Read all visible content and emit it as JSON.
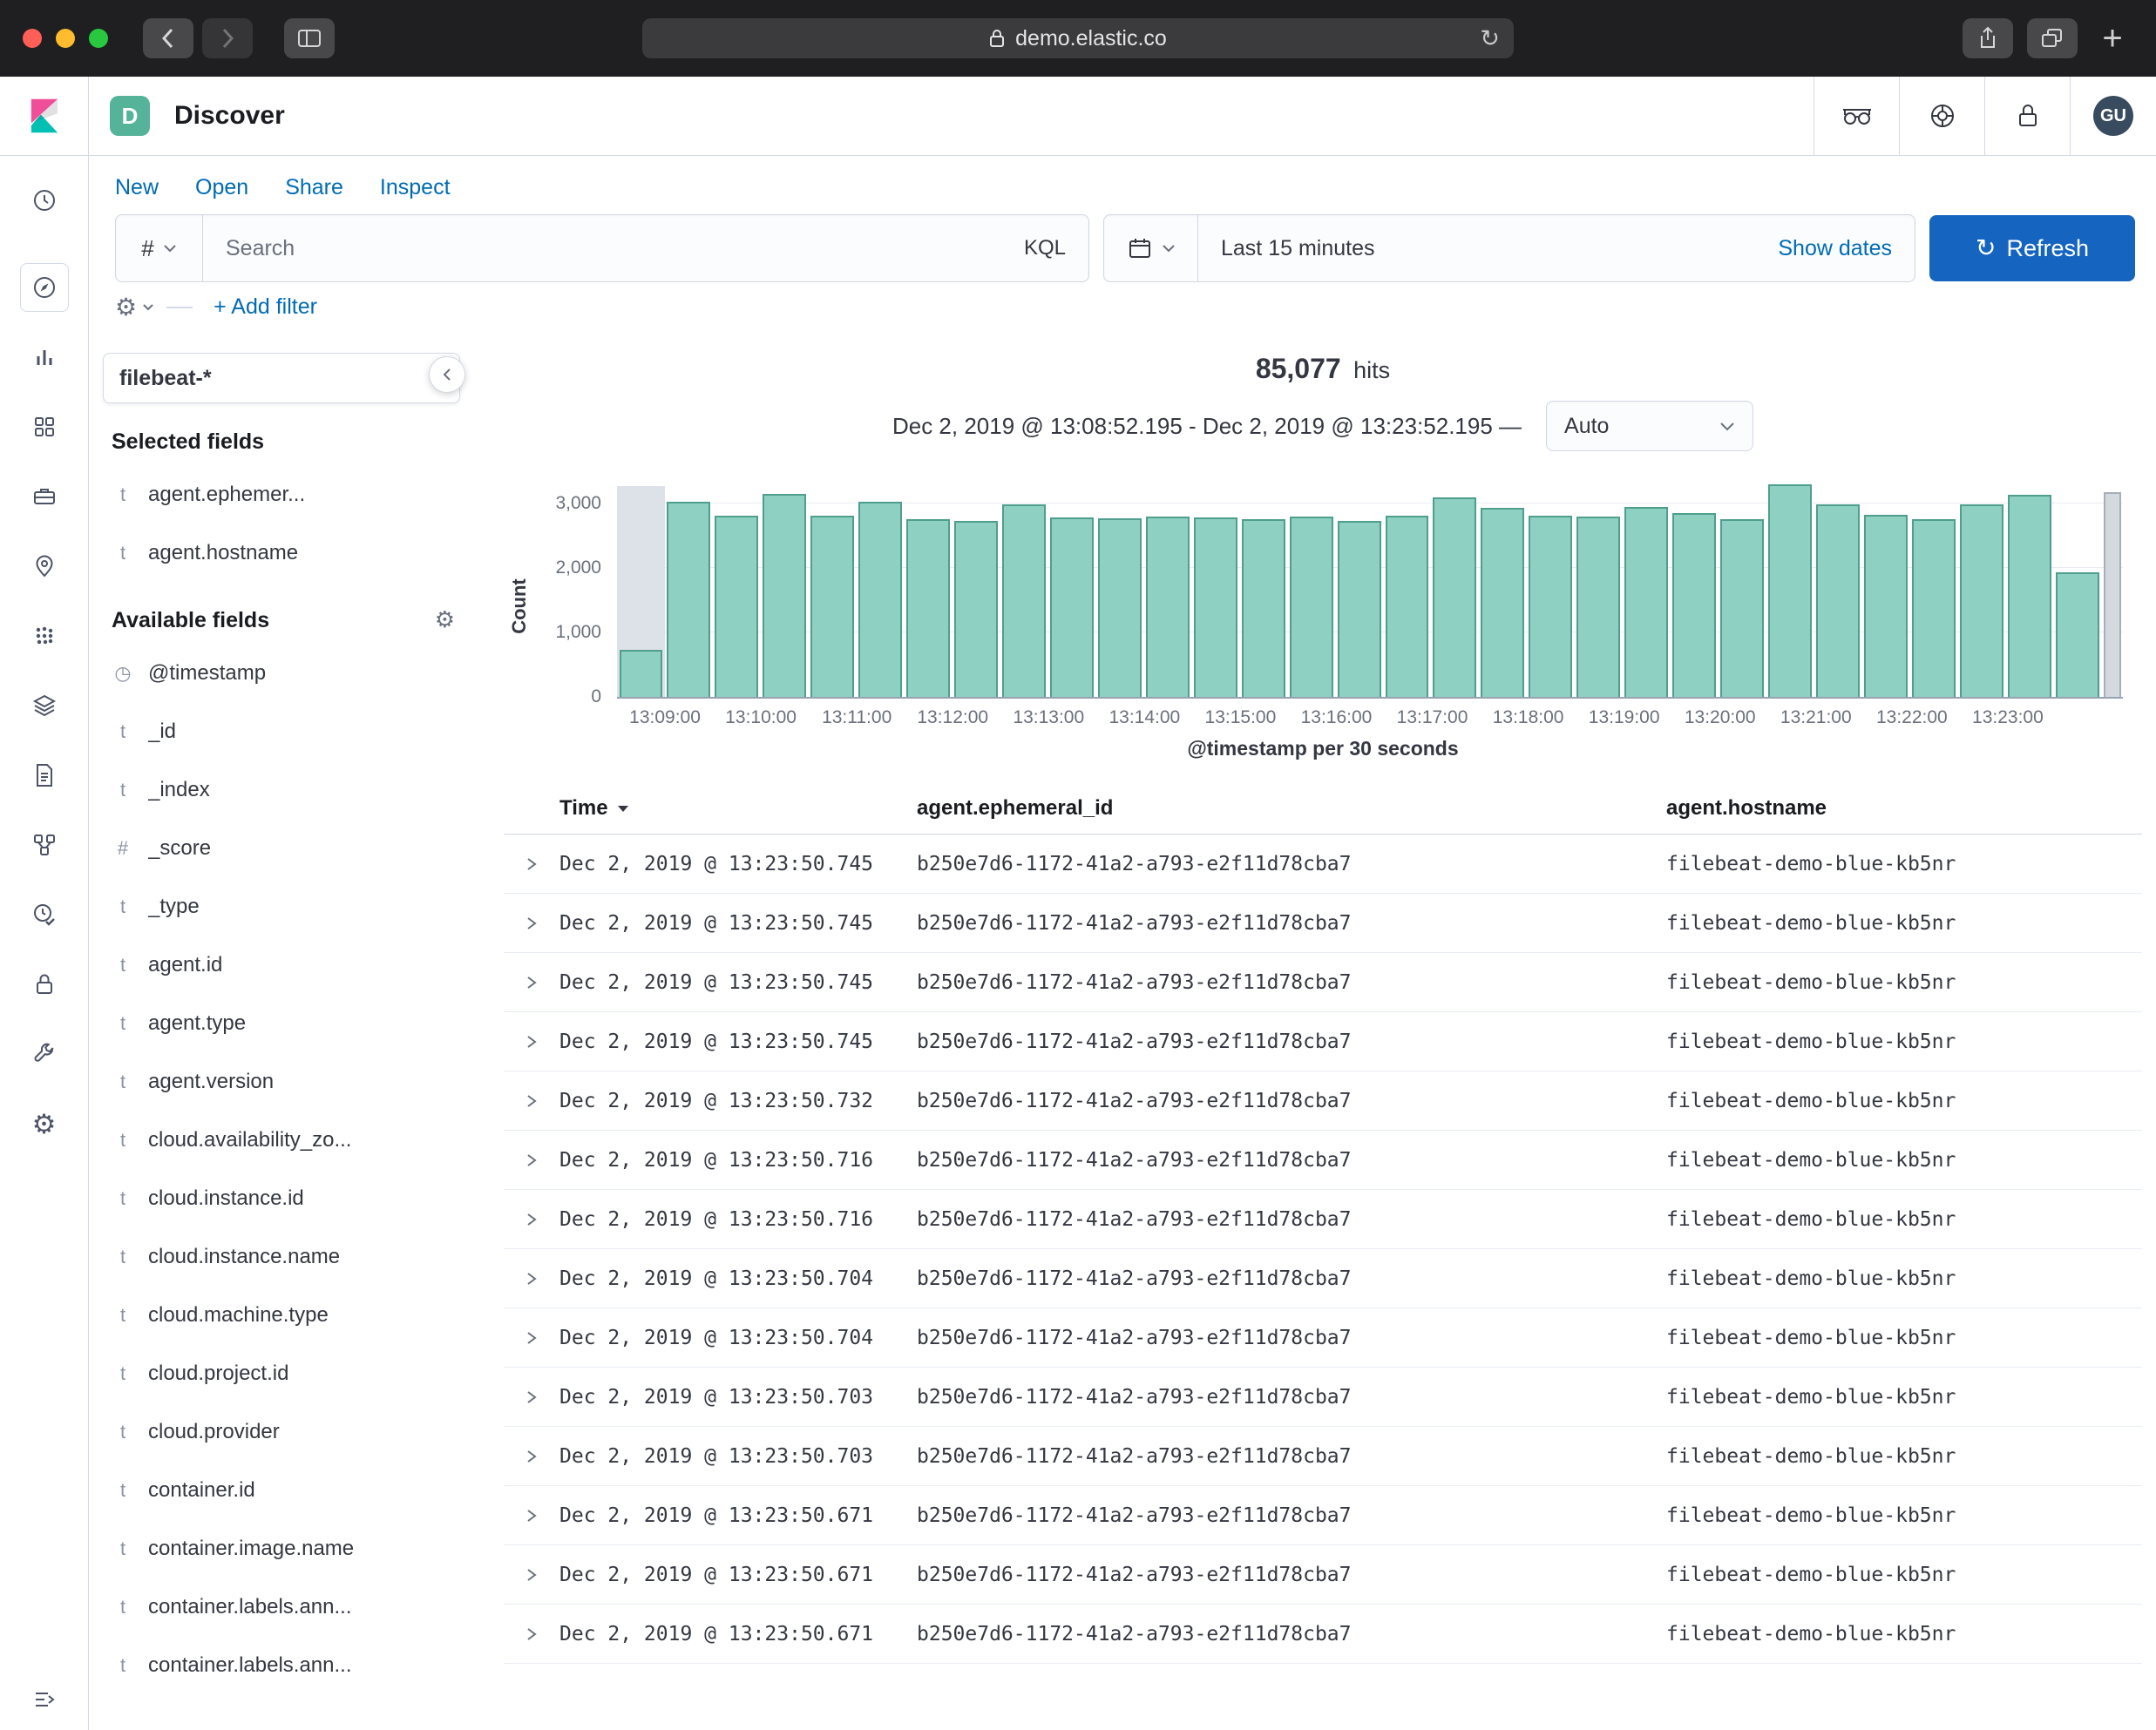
{
  "colors": {
    "accent_blue": "#006bb4",
    "refresh_button_blue": "#1565c0",
    "histogram_bar_fill": "#8ed0c1",
    "histogram_bar_border": "#4f9e8e",
    "space_badge_green": "#54b399",
    "traffic_close": "#ff5f57",
    "traffic_minimize": "#febc2e",
    "traffic_zoom": "#28c840"
  },
  "icons": {
    "gear": "⚙",
    "refresh": "↻",
    "new_tab": "+",
    "date_field": "◷"
  },
  "browser": {
    "url": "demo.elastic.co"
  },
  "header": {
    "space_badge": "D",
    "app_title": "Discover",
    "avatar_initials": "GU"
  },
  "top_nav": {
    "items": [
      "New",
      "Open",
      "Share",
      "Inspect"
    ]
  },
  "query_bar": {
    "language_toggle": "#",
    "search_placeholder": "Search",
    "language_label": "KQL",
    "time_range": "Last 15 minutes",
    "show_dates": "Show dates",
    "refresh": "Refresh"
  },
  "filter_bar": {
    "add_filter": "+ Add filter"
  },
  "sidebar": {
    "index_pattern": "filebeat-*",
    "selected_heading": "Selected fields",
    "selected_fields": [
      {
        "type": "t",
        "name": "agent.ephemer..."
      },
      {
        "type": "t",
        "name": "agent.hostname"
      }
    ],
    "available_heading": "Available fields",
    "available_fields": [
      {
        "type": "clock",
        "name": "@timestamp"
      },
      {
        "type": "t",
        "name": "_id"
      },
      {
        "type": "t",
        "name": "_index"
      },
      {
        "type": "#",
        "name": "_score"
      },
      {
        "type": "t",
        "name": "_type"
      },
      {
        "type": "t",
        "name": "agent.id"
      },
      {
        "type": "t",
        "name": "agent.type"
      },
      {
        "type": "t",
        "name": "agent.version"
      },
      {
        "type": "t",
        "name": "cloud.availability_zo..."
      },
      {
        "type": "t",
        "name": "cloud.instance.id"
      },
      {
        "type": "t",
        "name": "cloud.instance.name"
      },
      {
        "type": "t",
        "name": "cloud.machine.type"
      },
      {
        "type": "t",
        "name": "cloud.project.id"
      },
      {
        "type": "t",
        "name": "cloud.provider"
      },
      {
        "type": "t",
        "name": "container.id"
      },
      {
        "type": "t",
        "name": "container.image.name"
      },
      {
        "type": "t",
        "name": "container.labels.ann..."
      },
      {
        "type": "t",
        "name": "container.labels.ann..."
      }
    ]
  },
  "results": {
    "hits_value": "85,077",
    "hits_label": "hits",
    "time_range_text": "Dec 2, 2019 @ 13:08:52.195 - Dec 2, 2019 @ 13:23:52.195 —",
    "interval_value": "Auto"
  },
  "chart_data": {
    "type": "bar",
    "title": "85,077 hits",
    "xlabel": "@timestamp per 30 seconds",
    "ylabel": "Count",
    "ylim": [
      0,
      3400
    ],
    "y_ticks": [
      0,
      1000,
      2000,
      3000
    ],
    "y_tick_labels": [
      "0",
      "1,000",
      "2,000",
      "3,000"
    ],
    "x_tick_labels": [
      "13:09:00",
      "13:10:00",
      "13:11:00",
      "13:12:00",
      "13:13:00",
      "13:14:00",
      "13:15:00",
      "13:16:00",
      "13:17:00",
      "13:18:00",
      "13:19:00",
      "13:20:00",
      "13:21:00",
      "13:22:00",
      "13:23:00"
    ],
    "bars": [
      {
        "time": "13:08:30",
        "count": 700,
        "partial": true
      },
      {
        "time": "13:09:00",
        "count": 3000
      },
      {
        "time": "13:09:30",
        "count": 2780
      },
      {
        "time": "13:10:00",
        "count": 3120
      },
      {
        "time": "13:10:30",
        "count": 2780
      },
      {
        "time": "13:11:00",
        "count": 3000
      },
      {
        "time": "13:11:30",
        "count": 2730
      },
      {
        "time": "13:12:00",
        "count": 2700
      },
      {
        "time": "13:12:30",
        "count": 2950
      },
      {
        "time": "13:13:00",
        "count": 2750
      },
      {
        "time": "13:13:30",
        "count": 2740
      },
      {
        "time": "13:14:00",
        "count": 2760
      },
      {
        "time": "13:14:30",
        "count": 2750
      },
      {
        "time": "13:15:00",
        "count": 2720
      },
      {
        "time": "13:15:30",
        "count": 2760
      },
      {
        "time": "13:16:00",
        "count": 2700
      },
      {
        "time": "13:16:30",
        "count": 2780
      },
      {
        "time": "13:17:00",
        "count": 3060
      },
      {
        "time": "13:17:30",
        "count": 2900
      },
      {
        "time": "13:18:00",
        "count": 2780
      },
      {
        "time": "13:18:30",
        "count": 2760
      },
      {
        "time": "13:19:00",
        "count": 2920
      },
      {
        "time": "13:19:30",
        "count": 2820
      },
      {
        "time": "13:20:00",
        "count": 2730
      },
      {
        "time": "13:20:30",
        "count": 3260
      },
      {
        "time": "13:21:00",
        "count": 2950
      },
      {
        "time": "13:21:30",
        "count": 2790
      },
      {
        "time": "13:22:00",
        "count": 2720
      },
      {
        "time": "13:22:30",
        "count": 2960
      },
      {
        "time": "13:23:00",
        "count": 3100
      },
      {
        "time": "13:23:30",
        "count": 1900
      },
      {
        "time": "13:23:52",
        "count": 3150,
        "partial": true,
        "gray": true,
        "narrow": true
      }
    ]
  },
  "table": {
    "columns": [
      "Time",
      "agent.ephemeral_id",
      "agent.hostname"
    ],
    "rows": [
      {
        "time": "Dec 2, 2019 @ 13:23:50.745",
        "ephemeral_id": "b250e7d6-1172-41a2-a793-e2f11d78cba7",
        "hostname": "filebeat-demo-blue-kb5nr"
      },
      {
        "time": "Dec 2, 2019 @ 13:23:50.745",
        "ephemeral_id": "b250e7d6-1172-41a2-a793-e2f11d78cba7",
        "hostname": "filebeat-demo-blue-kb5nr"
      },
      {
        "time": "Dec 2, 2019 @ 13:23:50.745",
        "ephemeral_id": "b250e7d6-1172-41a2-a793-e2f11d78cba7",
        "hostname": "filebeat-demo-blue-kb5nr"
      },
      {
        "time": "Dec 2, 2019 @ 13:23:50.745",
        "ephemeral_id": "b250e7d6-1172-41a2-a793-e2f11d78cba7",
        "hostname": "filebeat-demo-blue-kb5nr"
      },
      {
        "time": "Dec 2, 2019 @ 13:23:50.732",
        "ephemeral_id": "b250e7d6-1172-41a2-a793-e2f11d78cba7",
        "hostname": "filebeat-demo-blue-kb5nr"
      },
      {
        "time": "Dec 2, 2019 @ 13:23:50.716",
        "ephemeral_id": "b250e7d6-1172-41a2-a793-e2f11d78cba7",
        "hostname": "filebeat-demo-blue-kb5nr"
      },
      {
        "time": "Dec 2, 2019 @ 13:23:50.716",
        "ephemeral_id": "b250e7d6-1172-41a2-a793-e2f11d78cba7",
        "hostname": "filebeat-demo-blue-kb5nr"
      },
      {
        "time": "Dec 2, 2019 @ 13:23:50.704",
        "ephemeral_id": "b250e7d6-1172-41a2-a793-e2f11d78cba7",
        "hostname": "filebeat-demo-blue-kb5nr"
      },
      {
        "time": "Dec 2, 2019 @ 13:23:50.704",
        "ephemeral_id": "b250e7d6-1172-41a2-a793-e2f11d78cba7",
        "hostname": "filebeat-demo-blue-kb5nr"
      },
      {
        "time": "Dec 2, 2019 @ 13:23:50.703",
        "ephemeral_id": "b250e7d6-1172-41a2-a793-e2f11d78cba7",
        "hostname": "filebeat-demo-blue-kb5nr"
      },
      {
        "time": "Dec 2, 2019 @ 13:23:50.703",
        "ephemeral_id": "b250e7d6-1172-41a2-a793-e2f11d78cba7",
        "hostname": "filebeat-demo-blue-kb5nr"
      },
      {
        "time": "Dec 2, 2019 @ 13:23:50.671",
        "ephemeral_id": "b250e7d6-1172-41a2-a793-e2f11d78cba7",
        "hostname": "filebeat-demo-blue-kb5nr"
      },
      {
        "time": "Dec 2, 2019 @ 13:23:50.671",
        "ephemeral_id": "b250e7d6-1172-41a2-a793-e2f11d78cba7",
        "hostname": "filebeat-demo-blue-kb5nr"
      },
      {
        "time": "Dec 2, 2019 @ 13:23:50.671",
        "ephemeral_id": "b250e7d6-1172-41a2-a793-e2f11d78cba7",
        "hostname": "filebeat-demo-blue-kb5nr"
      }
    ]
  }
}
